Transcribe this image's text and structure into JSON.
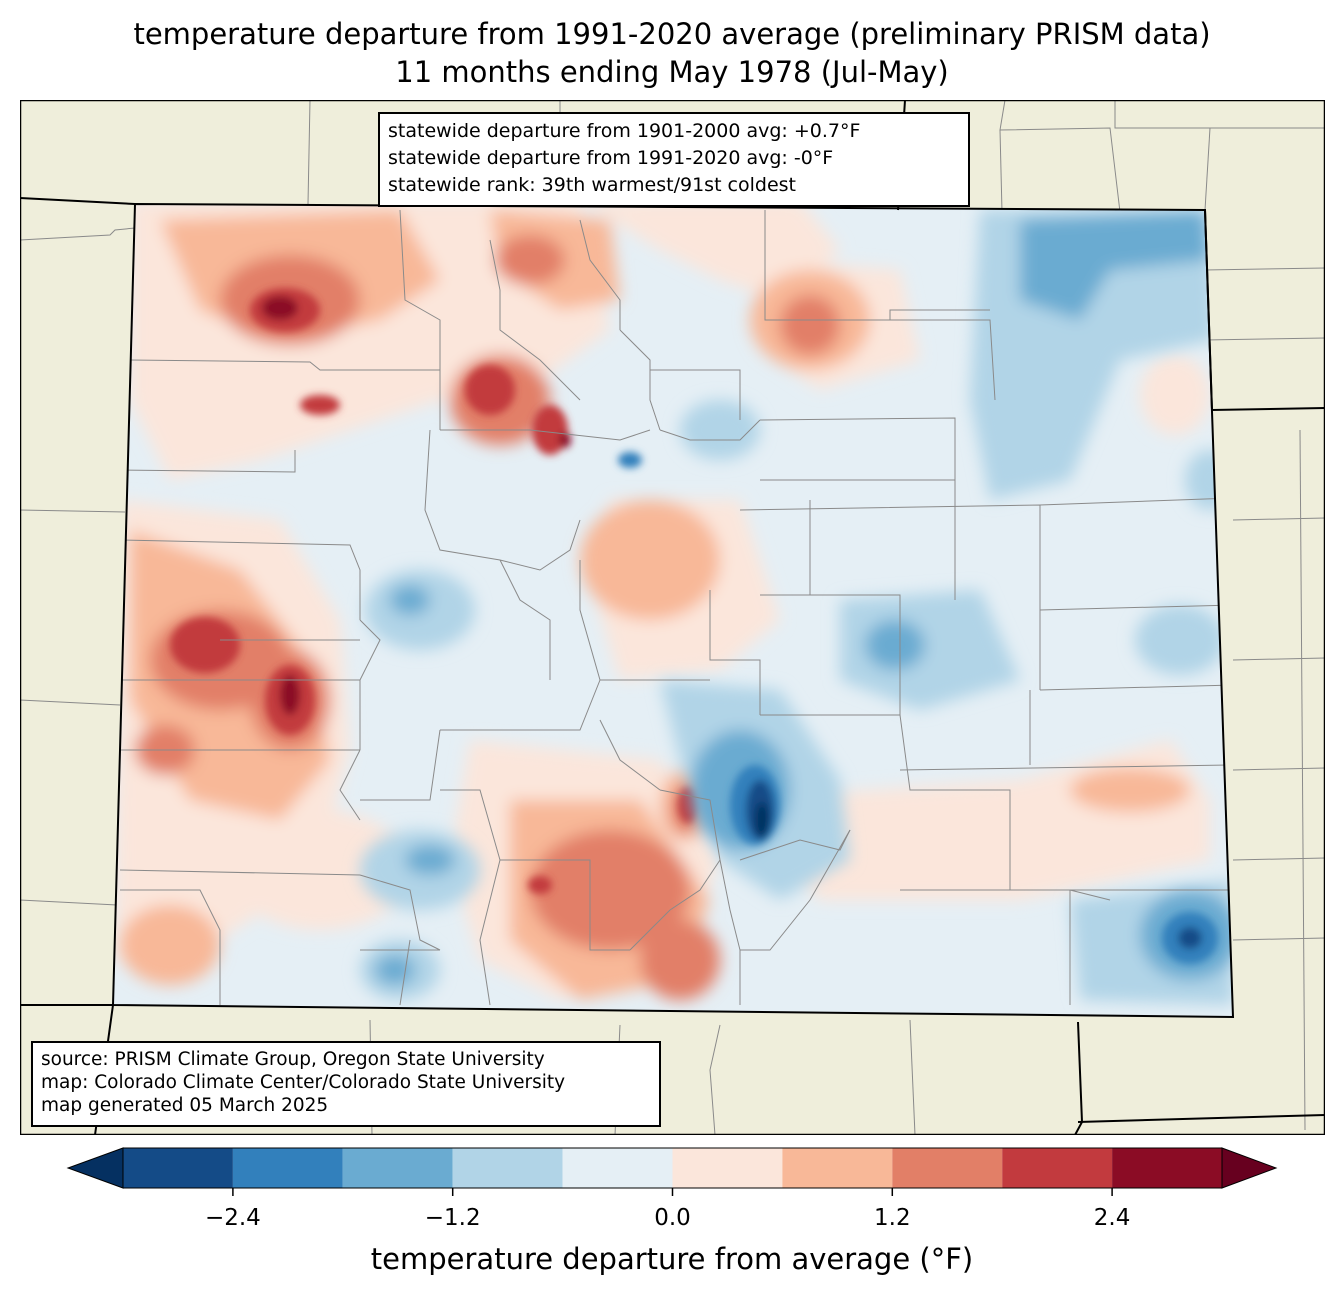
{
  "title_line1": "temperature departure from 1991-2020 average (preliminary PRISM data)",
  "title_line2": "11 months ending May 1978 (Jul-May)",
  "stats": {
    "line1": "statewide departure from 1901-2000 avg: +0.7°F",
    "line2": "statewide departure from 1991-2020 avg: -0°F",
    "line3": "statewide rank: 39th warmest/91st coldest"
  },
  "credits": {
    "line1": "source: PRISM Climate Group, Oregon State University",
    "line2": "map: Colorado Climate Center/Colorado State University",
    "line3": "map generated 05 March 2025"
  },
  "colorbar": {
    "label": "temperature departure from average (°F)",
    "levels": [
      -3.0,
      -2.4,
      -1.8,
      -1.2,
      -0.6,
      0.0,
      0.6,
      1.2,
      1.8,
      2.4,
      3.0
    ],
    "ticks": [
      -2.4,
      -1.2,
      0.0,
      1.2,
      2.4
    ],
    "tick_labels": [
      "−2.4",
      "−1.2",
      "0.0",
      "1.2",
      "2.4"
    ],
    "colors": [
      "#053061",
      "#144b87",
      "#3280bc",
      "#6aabd1",
      "#b1d4e7",
      "#e5eff5",
      "#fbe6db",
      "#f8b898",
      "#e27f67",
      "#c23a3e",
      "#8b0c25",
      "#67001f"
    ]
  },
  "map_colors": {
    "land": "#efeedb",
    "border": "#000000",
    "county": "#8a8a8a"
  }
}
